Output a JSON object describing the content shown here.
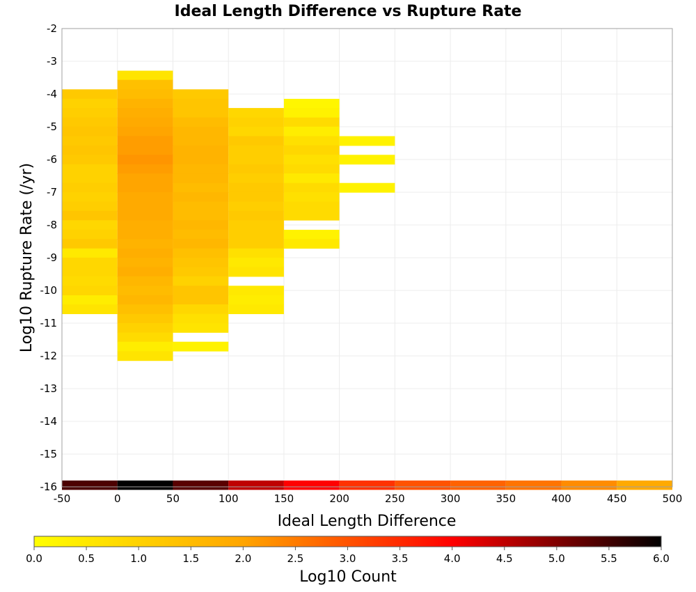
{
  "chart_data": {
    "type": "heatmap",
    "title": "Ideal Length Difference vs Rupture Rate",
    "xlabel": "Ideal Length Difference",
    "ylabel": "Log10 Rupture Rate (/yr)",
    "xlim": [
      -50,
      500
    ],
    "ylim": [
      -16,
      -2
    ],
    "x_ticks": [
      "-50",
      "0",
      "50",
      "100",
      "150",
      "200",
      "250",
      "300",
      "350",
      "400",
      "450",
      "500"
    ],
    "y_ticks": [
      "-2",
      "-3",
      "-4",
      "-5",
      "-6",
      "-7",
      "-8",
      "-9",
      "-10",
      "-11",
      "-12",
      "-13",
      "-14",
      "-15",
      "-16"
    ],
    "bin_width": 50,
    "bin_height": 0.2857,
    "grid": true,
    "colorbar": {
      "label": "Log10 Count",
      "range": [
        0.0,
        6.0
      ],
      "ticks": [
        "0.0",
        "0.5",
        "1.0",
        "1.5",
        "2.0",
        "2.5",
        "3.0",
        "3.5",
        "4.0",
        "4.5",
        "5.0",
        "5.5",
        "6.0"
      ],
      "colors": [
        "#ffff00",
        "#ffa500",
        "#ff0000",
        "#000000"
      ]
    },
    "columns": [
      {
        "x": -25,
        "cells": [
          {
            "y": -4.0,
            "v": 1.2
          },
          {
            "y": -4.29,
            "v": 1.0
          },
          {
            "y": -4.57,
            "v": 1.1
          },
          {
            "y": -4.86,
            "v": 1.2
          },
          {
            "y": -5.14,
            "v": 1.3
          },
          {
            "y": -5.43,
            "v": 1.2
          },
          {
            "y": -5.71,
            "v": 1.3
          },
          {
            "y": -6.0,
            "v": 1.2
          },
          {
            "y": -6.29,
            "v": 1.0
          },
          {
            "y": -6.57,
            "v": 1.0
          },
          {
            "y": -6.86,
            "v": 1.1
          },
          {
            "y": -7.14,
            "v": 1.0
          },
          {
            "y": -7.43,
            "v": 1.1
          },
          {
            "y": -7.71,
            "v": 1.3
          },
          {
            "y": -8.0,
            "v": 0.9
          },
          {
            "y": -8.29,
            "v": 1.0
          },
          {
            "y": -8.57,
            "v": 1.2
          },
          {
            "y": -8.86,
            "v": 0.5
          },
          {
            "y": -9.14,
            "v": 0.9
          },
          {
            "y": -9.43,
            "v": 0.9
          },
          {
            "y": -9.71,
            "v": 0.8
          },
          {
            "y": -10.0,
            "v": 0.9
          },
          {
            "y": -10.29,
            "v": 0.4
          },
          {
            "y": -10.57,
            "v": 0.6
          }
        ]
      },
      {
        "x": 25,
        "cells": [
          {
            "y": -3.43,
            "v": 0.6
          },
          {
            "y": -3.71,
            "v": 1.4
          },
          {
            "y": -4.0,
            "v": 1.5
          },
          {
            "y": -4.29,
            "v": 1.7
          },
          {
            "y": -4.57,
            "v": 1.8
          },
          {
            "y": -4.86,
            "v": 1.9
          },
          {
            "y": -5.14,
            "v": 2.0
          },
          {
            "y": -5.43,
            "v": 2.1
          },
          {
            "y": -5.71,
            "v": 2.1
          },
          {
            "y": -6.0,
            "v": 2.2
          },
          {
            "y": -6.29,
            "v": 2.1
          },
          {
            "y": -6.57,
            "v": 2.0
          },
          {
            "y": -6.86,
            "v": 2.0
          },
          {
            "y": -7.14,
            "v": 1.9
          },
          {
            "y": -7.43,
            "v": 1.9
          },
          {
            "y": -7.71,
            "v": 1.9
          },
          {
            "y": -8.0,
            "v": 1.8
          },
          {
            "y": -8.29,
            "v": 1.8
          },
          {
            "y": -8.57,
            "v": 1.7
          },
          {
            "y": -8.86,
            "v": 1.8
          },
          {
            "y": -9.14,
            "v": 1.7
          },
          {
            "y": -9.43,
            "v": 1.8
          },
          {
            "y": -9.71,
            "v": 1.6
          },
          {
            "y": -10.0,
            "v": 1.5
          },
          {
            "y": -10.29,
            "v": 1.6
          },
          {
            "y": -10.57,
            "v": 1.4
          },
          {
            "y": -10.86,
            "v": 1.2
          },
          {
            "y": -11.14,
            "v": 1.0
          },
          {
            "y": -11.43,
            "v": 0.8
          },
          {
            "y": -11.71,
            "v": 0.4
          },
          {
            "y": -12.0,
            "v": 0.6
          }
        ]
      },
      {
        "x": 75,
        "cells": [
          {
            "y": -4.0,
            "v": 1.2
          },
          {
            "y": -4.29,
            "v": 1.3
          },
          {
            "y": -4.57,
            "v": 1.3
          },
          {
            "y": -4.86,
            "v": 1.5
          },
          {
            "y": -5.14,
            "v": 1.6
          },
          {
            "y": -5.43,
            "v": 1.6
          },
          {
            "y": -5.71,
            "v": 1.7
          },
          {
            "y": -6.0,
            "v": 1.7
          },
          {
            "y": -6.29,
            "v": 1.6
          },
          {
            "y": -6.57,
            "v": 1.6
          },
          {
            "y": -6.86,
            "v": 1.5
          },
          {
            "y": -7.14,
            "v": 1.6
          },
          {
            "y": -7.43,
            "v": 1.5
          },
          {
            "y": -7.71,
            "v": 1.5
          },
          {
            "y": -8.0,
            "v": 1.6
          },
          {
            "y": -8.29,
            "v": 1.5
          },
          {
            "y": -8.57,
            "v": 1.6
          },
          {
            "y": -8.86,
            "v": 1.4
          },
          {
            "y": -9.14,
            "v": 1.3
          },
          {
            "y": -9.43,
            "v": 1.2
          },
          {
            "y": -9.71,
            "v": 1.0
          },
          {
            "y": -10.0,
            "v": 1.3
          },
          {
            "y": -10.29,
            "v": 1.3
          },
          {
            "y": -10.57,
            "v": 0.9
          },
          {
            "y": -10.86,
            "v": 0.7
          },
          {
            "y": -11.14,
            "v": 0.6
          },
          {
            "y": -11.71,
            "v": 0.3
          }
        ]
      },
      {
        "x": 125,
        "cells": [
          {
            "y": -4.57,
            "v": 0.9
          },
          {
            "y": -4.86,
            "v": 1.0
          },
          {
            "y": -5.14,
            "v": 0.9
          },
          {
            "y": -5.43,
            "v": 1.2
          },
          {
            "y": -5.71,
            "v": 1.1
          },
          {
            "y": -6.0,
            "v": 1.1
          },
          {
            "y": -6.29,
            "v": 1.2
          },
          {
            "y": -6.57,
            "v": 1.1
          },
          {
            "y": -6.86,
            "v": 1.2
          },
          {
            "y": -7.14,
            "v": 1.2
          },
          {
            "y": -7.43,
            "v": 1.1
          },
          {
            "y": -7.71,
            "v": 1.2
          },
          {
            "y": -8.0,
            "v": 1.1
          },
          {
            "y": -8.29,
            "v": 1.1
          },
          {
            "y": -8.57,
            "v": 1.1
          },
          {
            "y": -8.86,
            "v": 0.7
          },
          {
            "y": -9.14,
            "v": 0.5
          },
          {
            "y": -9.43,
            "v": 0.6
          },
          {
            "y": -10.0,
            "v": 0.5
          },
          {
            "y": -10.29,
            "v": 0.4
          },
          {
            "y": -10.57,
            "v": 0.5
          }
        ]
      },
      {
        "x": 175,
        "cells": [
          {
            "y": -4.29,
            "v": 0.2
          },
          {
            "y": -4.57,
            "v": 0.3
          },
          {
            "y": -4.86,
            "v": 0.8
          },
          {
            "y": -5.14,
            "v": 0.4
          },
          {
            "y": -5.43,
            "v": 0.7
          },
          {
            "y": -5.71,
            "v": 0.9
          },
          {
            "y": -6.0,
            "v": 0.7
          },
          {
            "y": -6.29,
            "v": 0.8
          },
          {
            "y": -6.57,
            "v": 0.5
          },
          {
            "y": -6.86,
            "v": 0.8
          },
          {
            "y": -7.14,
            "v": 0.7
          },
          {
            "y": -7.43,
            "v": 0.8
          },
          {
            "y": -7.71,
            "v": 0.8
          },
          {
            "y": -8.29,
            "v": 0.3
          },
          {
            "y": -8.57,
            "v": 0.5
          }
        ]
      },
      {
        "x": 225,
        "cells": [
          {
            "y": -5.43,
            "v": 0.3
          },
          {
            "y": -6.0,
            "v": 0.3
          },
          {
            "y": -6.86,
            "v": 0.3
          }
        ]
      }
    ],
    "bottom_strip": {
      "y": -15.95,
      "values": [
        5.4,
        6.0,
        5.3,
        4.5,
        4.0,
        3.4,
        3.0,
        2.8,
        2.6,
        2.3,
        1.9
      ]
    }
  }
}
